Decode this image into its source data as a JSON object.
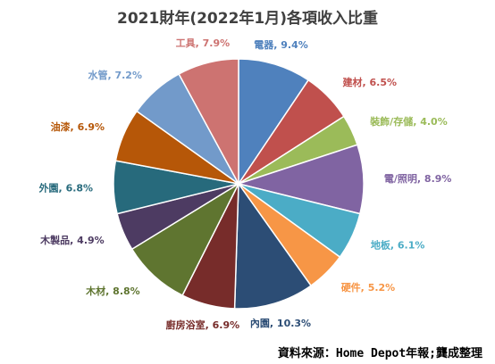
{
  "chart_data": {
    "type": "pie",
    "title": "2021財年(2022年1月)各項收入比重",
    "slices": [
      {
        "label": "電器",
        "value": 9.4,
        "value_text": "9.4%",
        "color": "#4f81bd"
      },
      {
        "label": "建材",
        "value": 6.5,
        "value_text": "6.5%",
        "color": "#c0504d"
      },
      {
        "label": "裝飾/存儲",
        "value": 4.0,
        "value_text": "4.0%",
        "color": "#9bbb59"
      },
      {
        "label": "電/照明",
        "value": 8.9,
        "value_text": "8.9%",
        "color": "#8064a2"
      },
      {
        "label": "地板",
        "value": 6.1,
        "value_text": "6.1%",
        "color": "#4bacc6"
      },
      {
        "label": "硬件",
        "value": 5.2,
        "value_text": "5.2%",
        "color": "#f79646"
      },
      {
        "label": "內園",
        "value": 10.3,
        "value_text": "10.3%",
        "color": "#2c4d75"
      },
      {
        "label": "廚房浴室",
        "value": 6.9,
        "value_text": "6.9%",
        "color": "#772c2a"
      },
      {
        "label": "木材",
        "value": 8.8,
        "value_text": "8.8%",
        "color": "#5f7530"
      },
      {
        "label": "木製品",
        "value": 4.9,
        "value_text": "4.9%",
        "color": "#4d3b62"
      },
      {
        "label": "外園",
        "value": 6.8,
        "value_text": "6.8%",
        "color": "#276a7c"
      },
      {
        "label": "油漆",
        "value": 6.9,
        "value_text": "6.9%",
        "color": "#b65708"
      },
      {
        "label": "水管",
        "value": 7.2,
        "value_text": "7.2%",
        "color": "#729aca"
      },
      {
        "label": "工具",
        "value": 7.9,
        "value_text": "7.9%",
        "color": "#cd7371"
      }
    ]
  },
  "source_note": "資料來源：Home Depot年報;龔成整理"
}
